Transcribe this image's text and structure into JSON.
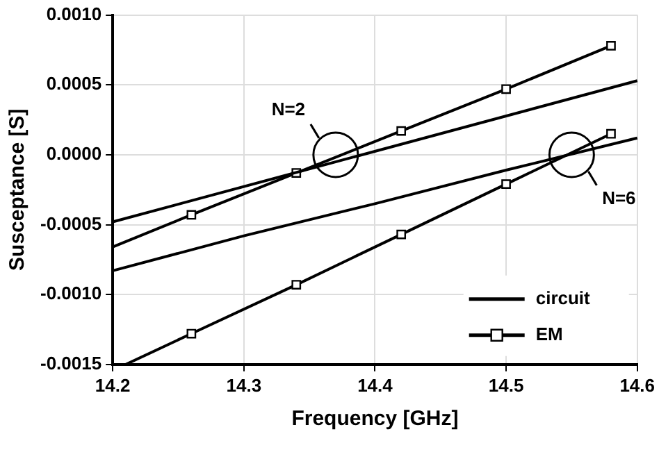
{
  "chart_data": {
    "type": "line",
    "xlabel": "Frequency [GHz]",
    "ylabel": "Susceptance [S]",
    "xlim": [
      14.2,
      14.6
    ],
    "xticks": [
      14.2,
      14.3,
      14.4,
      14.5,
      14.6
    ],
    "ylim": [
      -0.0015,
      0.001
    ],
    "yticks": [
      {
        "value": -0.0015,
        "label": "-0.0015"
      },
      {
        "value": -0.001,
        "label": "-0.0010"
      },
      {
        "value": -0.0005,
        "label": "-0.0005"
      },
      {
        "value": 0,
        "label": "0.0000"
      },
      {
        "value": 0.0005,
        "label": "0.0005"
      },
      {
        "value": 0.001,
        "label": "0.0010"
      }
    ],
    "grid": true,
    "legend": "bottom right",
    "series": [
      {
        "name": "circuit",
        "color": "#000000",
        "marker": "none",
        "x": [
          14.2,
          14.6
        ],
        "values": [
          -0.00048,
          0.00053
        ]
      },
      {
        "name": "EM",
        "color": "#000000",
        "marker": "square",
        "x": [
          14.2,
          14.26,
          14.34,
          14.42,
          14.5,
          14.58
        ],
        "values": [
          -0.00066,
          -0.00043,
          -0.00013,
          0.00017,
          0.00047,
          0.00078
        ]
      },
      {
        "color": "#000000",
        "marker": "none",
        "x": [
          14.2,
          14.3,
          14.4,
          14.5,
          14.6
        ],
        "values": [
          -0.00083,
          -0.00058,
          -0.00035,
          -0.00011,
          0.00012
        ]
      },
      {
        "color": "#000000",
        "marker": "square",
        "x": [
          14.21,
          14.26,
          14.34,
          14.42,
          14.5,
          14.58
        ],
        "values": [
          -0.0015,
          -0.00128,
          -0.00093,
          -0.00057,
          -0.00021,
          0.00015
        ]
      }
    ],
    "annotations": [
      {
        "text": "N=2",
        "x": 14.37,
        "y": 0
      },
      {
        "text": "N=6",
        "x": 14.55,
        "y": 0
      }
    ]
  }
}
